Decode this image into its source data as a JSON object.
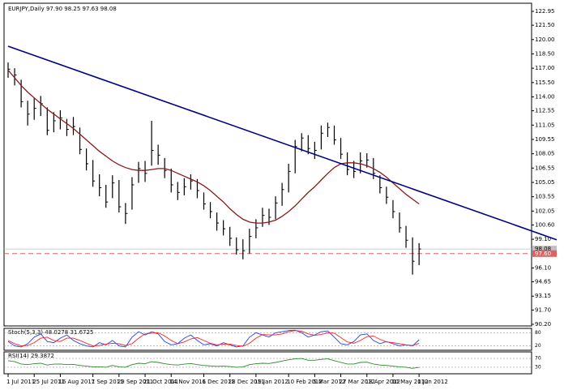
{
  "chart_data": [
    {
      "type": "ohlc",
      "title": "EURJPY,Daily  97.90 98.25 97.63 98.08",
      "categories": [
        "1 Jul 2011",
        null,
        null,
        null,
        "25 Jul 2011",
        null,
        null,
        null,
        "16 Aug 2011",
        null,
        null,
        null,
        null,
        "7 Sep 2011",
        null,
        null,
        null,
        "29 Sep 2011",
        null,
        null,
        null,
        "21 Oct 2011",
        null,
        null,
        null,
        "14 Nov 2011",
        null,
        null,
        null,
        null,
        "6 Dec 2011",
        null,
        null,
        null,
        "28 Dec 2011",
        null,
        null,
        null,
        "19 Jan 2012",
        null,
        null,
        null,
        null,
        "10 Feb 2012",
        null,
        null,
        null,
        "5 Mar 2012",
        null,
        null,
        null,
        "27 Mar 2012",
        null,
        null,
        null,
        "18 Apr 2012",
        null,
        null,
        null,
        "10 May 2012",
        null,
        null,
        null,
        "1 Jun 2012"
      ],
      "high": [
        117.6,
        117.0,
        115.8,
        113.6,
        113.9,
        114.1,
        112.9,
        112.4,
        112.6,
        111.7,
        111.9,
        110.8,
        108.6,
        107.4,
        105.9,
        104.8,
        105.8,
        105.3,
        102.9,
        105.6,
        107.2,
        107.3,
        111.5,
        109.0,
        107.6,
        106.5,
        105.1,
        105.5,
        105.9,
        105.4,
        104.0,
        103.0,
        101.9,
        101.1,
        100.4,
        99.3,
        99.1,
        100.2,
        101.2,
        102.4,
        102.3,
        103.6,
        105.0,
        107.0,
        109.5,
        110.2,
        110.0,
        109.3,
        111.0,
        111.3,
        111.0,
        109.7,
        108.2,
        107.3,
        108.2,
        108.1,
        107.6,
        105.8,
        104.6,
        103.2,
        101.9,
        100.5,
        99.3,
        98.7
      ],
      "low": [
        116.0,
        115.2,
        112.9,
        111.0,
        111.6,
        112.0,
        110.0,
        110.3,
        110.6,
        109.9,
        110.0,
        108.0,
        106.3,
        104.6,
        103.6,
        102.4,
        103.4,
        101.9,
        100.7,
        102.2,
        105.0,
        105.1,
        106.8,
        106.9,
        105.5,
        104.0,
        103.2,
        103.7,
        104.3,
        103.4,
        102.2,
        101.3,
        100.0,
        99.5,
        98.4,
        97.5,
        97.0,
        97.6,
        99.2,
        100.4,
        100.6,
        101.2,
        102.6,
        104.0,
        106.0,
        108.3,
        108.0,
        107.5,
        108.5,
        109.8,
        109.0,
        107.5,
        105.8,
        105.5,
        106.0,
        106.6,
        105.4,
        103.9,
        102.8,
        101.3,
        99.8,
        98.2,
        95.4,
        96.4
      ],
      "close": [
        116.9,
        116.3,
        113.5,
        112.2,
        112.8,
        113.3,
        110.5,
        111.5,
        111.8,
        110.6,
        110.9,
        108.5,
        107.0,
        105.2,
        104.5,
        103.0,
        105.0,
        102.5,
        101.8,
        104.8,
        106.5,
        106.0,
        108.4,
        107.9,
        106.3,
        104.8,
        104.0,
        104.6,
        105.2,
        104.2,
        102.8,
        102.0,
        100.8,
        100.2,
        99.2,
        98.0,
        97.9,
        99.4,
        100.3,
        101.6,
        101.4,
        102.9,
        104.3,
        106.2,
        108.8,
        109.7,
        108.6,
        108.4,
        110.2,
        110.8,
        109.5,
        108.0,
        106.4,
        106.2,
        107.3,
        107.4,
        106.0,
        104.5,
        103.5,
        102.0,
        100.3,
        99.0,
        96.8,
        98.08
      ],
      "color": "#000000",
      "moving_average": {
        "color": "#8b1a1a",
        "values": [
          116.8,
          116.0,
          115.2,
          114.5,
          113.9,
          113.3,
          112.7,
          112.2,
          111.7,
          111.2,
          110.7,
          110.1,
          109.5,
          108.9,
          108.3,
          107.8,
          107.3,
          106.9,
          106.6,
          106.4,
          106.3,
          106.3,
          106.4,
          106.5,
          106.5,
          106.3,
          106.0,
          105.7,
          105.4,
          105.1,
          104.7,
          104.2,
          103.6,
          103.0,
          102.3,
          101.7,
          101.2,
          100.9,
          100.8,
          100.8,
          100.9,
          101.1,
          101.5,
          102.0,
          102.6,
          103.3,
          104.0,
          104.6,
          105.3,
          106.0,
          106.6,
          107.0,
          107.1,
          107.1,
          107.0,
          106.8,
          106.5,
          106.1,
          105.6,
          105.0,
          104.4,
          103.8,
          103.3,
          102.8
        ]
      },
      "trendline": {
        "color": "#00008b",
        "x": [
          0,
          84.1
        ],
        "y": [
          119.3,
          99.05
        ]
      },
      "hline": {
        "value": 97.6,
        "label": "97.60",
        "color": "#e06060"
      },
      "last_price_color": "#c0c0c0",
      "ylim": [
        90.03,
        123.8
      ],
      "yticks": [
        122.95,
        {
          "value": 121.5,
          "label": "121.50"
        },
        {
          "value": 120,
          "label": "120.00"
        },
        {
          "value": 118.5,
          "label": "118.50"
        },
        {
          "value": 117,
          "label": "117.00"
        },
        {
          "value": 115.5,
          "label": "115.50"
        },
        {
          "value": 114,
          "label": "114.00"
        },
        112.55,
        111.05,
        109.55,
        108.05,
        106.55,
        105.05,
        103.55,
        102.05,
        {
          "value": 100.6,
          "label": "100.60"
        },
        {
          "value": 99.1,
          "label": "99.10"
        },
        {
          "value": 96.1,
          "label": "96.10"
        },
        94.65,
        93.15,
        {
          "value": 91.7,
          "label": "91.70"
        },
        {
          "value": 90.2,
          "label": "90.20"
        }
      ]
    },
    {
      "type": "line",
      "title": "Stoch(5,3,3)",
      "series": [
        {
          "color": "#2040ff",
          "values": [
            40,
            20,
            15,
            30,
            60,
            75,
            40,
            35,
            55,
            70,
            45,
            30,
            20,
            15,
            35,
            25,
            45,
            20,
            15,
            60,
            85,
            70,
            85,
            75,
            40,
            25,
            30,
            55,
            70,
            45,
            25,
            30,
            20,
            35,
            25,
            15,
            20,
            60,
            80,
            70,
            60,
            80,
            85,
            90,
            92,
            80,
            60,
            70,
            85,
            88,
            60,
            30,
            25,
            40,
            70,
            75,
            45,
            30,
            40,
            30,
            20,
            25,
            20,
            48.0278
          ]
        },
        {
          "color": "#ff2020",
          "values": [
            45,
            30,
            20,
            22,
            35,
            55,
            60,
            45,
            40,
            55,
            55,
            45,
            32,
            20,
            22,
            28,
            32,
            30,
            22,
            30,
            55,
            75,
            78,
            80,
            65,
            45,
            30,
            38,
            52,
            58,
            45,
            32,
            25,
            28,
            28,
            22,
            18,
            32,
            55,
            72,
            70,
            70,
            75,
            85,
            90,
            87,
            75,
            68,
            72,
            80,
            78,
            58,
            38,
            32,
            45,
            62,
            65,
            50,
            38,
            35,
            30,
            25,
            22,
            31.6725
          ]
        }
      ],
      "ylim": [
        0,
        100
      ],
      "yticks": [
        20,
        80
      ]
    },
    {
      "type": "line",
      "title": "RSI(14)",
      "series": [
        {
          "color": "#2e8b2e",
          "values": [
            60,
            55,
            45,
            42,
            46,
            48,
            40,
            44,
            45,
            42,
            43,
            38,
            35,
            32,
            32,
            30,
            38,
            32,
            30,
            42,
            48,
            46,
            55,
            52,
            46,
            42,
            40,
            44,
            47,
            42,
            38,
            36,
            34,
            35,
            33,
            30,
            31,
            42,
            46,
            48,
            47,
            52,
            58,
            64,
            68,
            70,
            62,
            62,
            66,
            68,
            60,
            52,
            45,
            45,
            52,
            53,
            45,
            40,
            38,
            35,
            32,
            30,
            25,
            29.3872
          ]
        }
      ],
      "ylim": [
        0,
        100
      ],
      "yticks": [
        30,
        70
      ]
    }
  ]
}
